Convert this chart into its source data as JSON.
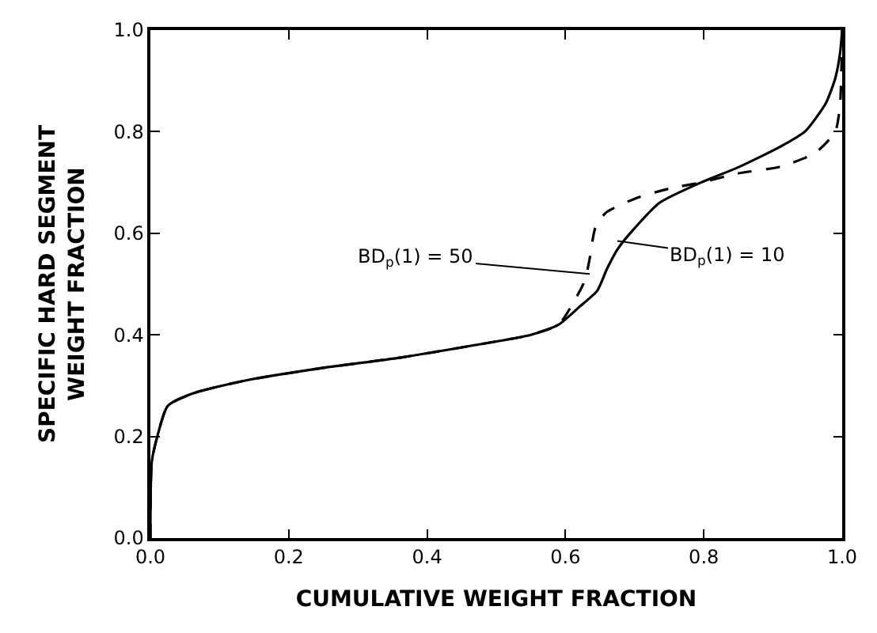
{
  "chart_data": {
    "type": "line",
    "xlabel": "CUMULATIVE WEIGHT FRACTION",
    "ylabel": "SPECIFIC HARD SEGMENT\nWEIGHT FRACTION",
    "xlim": [
      0,
      1
    ],
    "ylim": [
      0,
      1
    ],
    "xticks": [
      {
        "value": 0,
        "label": "0.0"
      },
      0.2,
      0.4,
      0.6,
      0.8,
      {
        "value": 1,
        "label": "1.0"
      }
    ],
    "yticks": [
      {
        "value": 0,
        "label": "0.0"
      },
      0.2,
      0.4,
      0.6,
      0.8,
      {
        "value": 1,
        "label": "1.0"
      }
    ],
    "series": [
      {
        "color": "#000000",
        "line_style": "solid",
        "x": [
          0,
          0.002,
          0.01,
          0.025,
          0.062,
          0.137,
          0.25,
          0.36,
          0.47,
          0.55,
          0.59,
          0.62,
          0.646,
          0.66,
          0.676,
          0.7,
          0.736,
          0.796,
          0.85,
          0.91,
          0.946,
          0.976,
          0.99,
          0.997,
          1.0
        ],
        "values": [
          0,
          0.15,
          0.2,
          0.26,
          0.285,
          0.31,
          0.335,
          0.355,
          0.38,
          0.4,
          0.42,
          0.455,
          0.487,
          0.53,
          0.57,
          0.61,
          0.66,
          0.7,
          0.73,
          0.77,
          0.8,
          0.855,
          0.905,
          0.955,
          1.0
        ]
      },
      {
        "color": "#000000",
        "line_style": "dashed",
        "x": [
          0,
          0.002,
          0.01,
          0.025,
          0.062,
          0.137,
          0.25,
          0.36,
          0.47,
          0.55,
          0.59,
          0.61,
          0.628,
          0.635,
          0.643,
          0.658,
          0.7,
          0.75,
          0.796,
          0.85,
          0.91,
          0.961,
          0.99,
          0.997,
          1.0
        ],
        "values": [
          0,
          0.15,
          0.2,
          0.26,
          0.285,
          0.31,
          0.335,
          0.355,
          0.38,
          0.4,
          0.42,
          0.46,
          0.507,
          0.55,
          0.61,
          0.64,
          0.668,
          0.688,
          0.7,
          0.718,
          0.731,
          0.758,
          0.8,
          0.855,
          1.0
        ]
      }
    ],
    "annotations": [
      {
        "text": "BD$_{p}$(1) = 50",
        "x": 0.635,
        "y": 0.52
      },
      {
        "text": "BD$_{p}$(1) = 10",
        "x": 0.675,
        "y": 0.585
      }
    ]
  }
}
